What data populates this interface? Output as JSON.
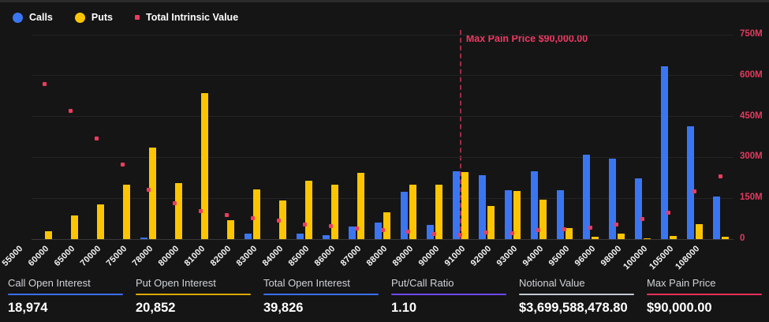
{
  "legend": {
    "calls": "Calls",
    "puts": "Puts",
    "intrinsic": "Total Intrinsic Value"
  },
  "colors": {
    "calls": "#3b76f2",
    "puts": "#fdc500",
    "intrinsic": "#ed3b5f",
    "max_pain_line": "#9e2e45",
    "max_pain_text": "#ee3a63",
    "right_axis_text": "#e23a5e",
    "background": "#151515"
  },
  "chart_data": {
    "type": "bar",
    "title": "",
    "legend_position": "top-left",
    "grid": true,
    "categories": [
      "55000",
      "60000",
      "65000",
      "70000",
      "75000",
      "78000",
      "80000",
      "81000",
      "82000",
      "83000",
      "84000",
      "85000",
      "86000",
      "87000",
      "88000",
      "89000",
      "90000",
      "91000",
      "92000",
      "93000",
      "94000",
      "95000",
      "96000",
      "98000",
      "100000",
      "105000",
      "108000"
    ],
    "series": [
      {
        "name": "Calls",
        "type": "bar",
        "axis": "left",
        "values": [
          0,
          0,
          0,
          0,
          35,
          0,
          0,
          0,
          115,
          0,
          105,
          80,
          250,
          325,
          930,
          280,
          1335,
          1250,
          965,
          1335,
          955,
          1660,
          1580,
          1195,
          3390,
          2215,
          835
        ]
      },
      {
        "name": "Puts",
        "type": "bar",
        "axis": "left",
        "values": [
          160,
          465,
          680,
          1065,
          1785,
          1095,
          2850,
          365,
          980,
          760,
          1150,
          1065,
          1305,
          520,
          1060,
          1070,
          1320,
          650,
          935,
          775,
          210,
          40,
          105,
          10,
          55,
          300,
          40
        ]
      },
      {
        "name": "Total Intrinsic Value",
        "type": "scatter",
        "axis": "right",
        "unit": "M",
        "values": [
          570,
          472,
          370,
          275,
          182,
          133,
          102,
          88,
          76,
          68,
          55,
          47,
          38,
          32,
          29,
          20,
          17,
          26,
          23,
          34,
          36,
          43,
          53,
          74,
          97,
          176,
          230
        ]
      }
    ],
    "left_axis": {
      "min": 0,
      "max": 4000,
      "ticks": [
        "0",
        "800",
        "1600",
        "2400",
        "3200",
        "4000"
      ]
    },
    "right_axis": {
      "min": 0,
      "max": 750,
      "ticks": [
        "0",
        "150M",
        "300M",
        "450M",
        "600M",
        "750M"
      ]
    },
    "annotation": {
      "label": "Max Pain Price $90,000.00",
      "category": "90000"
    }
  },
  "stats": [
    {
      "label": "Call Open Interest",
      "value": "18,974",
      "underline": "#3b6ef0"
    },
    {
      "label": "Put Open Interest",
      "value": "20,852",
      "underline": "#dfa800"
    },
    {
      "label": "Total Open Interest",
      "value": "39,826",
      "underline": "#3b6ef0"
    },
    {
      "label": "Put/Call Ratio",
      "value": "1.10",
      "underline": "#6d49f2"
    },
    {
      "label": "Notional Value",
      "value": "$3,699,588,478.80",
      "underline": "#c3c8d4"
    },
    {
      "label": "Max Pain Price",
      "value": "$90,000.00",
      "underline": "#e8315b"
    }
  ]
}
